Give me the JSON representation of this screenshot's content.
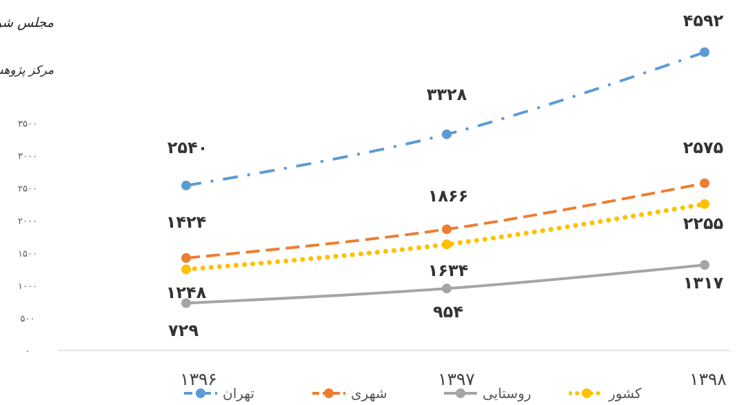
{
  "logo": {
    "line1": "مجلس شورای اسلامی",
    "line2": "مرکز پژوهش‌ها"
  },
  "chart_data": {
    "type": "line",
    "title": "",
    "xlabel": "",
    "ylabel": "",
    "categories": [
      "۱۳۹۶",
      "۱۳۹۷",
      "۱۳۹۸"
    ],
    "y_ticks": [
      "۰",
      "۵۰۰",
      "۱۰۰۰",
      "۱۵۰۰",
      "۲۰۰۰",
      "۲۵۰۰",
      "۳۰۰۰",
      "۳۵۰۰"
    ],
    "ylim": [
      0,
      4800
    ],
    "grid": false,
    "legend_position": "bottom",
    "series": [
      {
        "name": "تهران",
        "values": [
          2540,
          3328,
          4592
        ],
        "labels": [
          "۲۵۴۰",
          "۳۳۲۸",
          "۴۵۹۲"
        ],
        "color": "#5B9BD5",
        "style": "dash-dot"
      },
      {
        "name": "شهری",
        "values": [
          1424,
          1866,
          2575
        ],
        "labels": [
          "۱۴۲۴",
          "۱۸۶۶",
          "۲۵۷۵"
        ],
        "color": "#ED7D31",
        "style": "dash"
      },
      {
        "name": "روستایی",
        "values": [
          729,
          954,
          1317
        ],
        "labels": [
          "۷۲۹",
          "۹۵۴",
          "۱۳۱۷"
        ],
        "color": "#A5A5A5",
        "style": "solid"
      },
      {
        "name": "کشور",
        "values": [
          1248,
          1634,
          2255
        ],
        "labels": [
          "۱۲۴۸",
          "۱۶۳۴",
          "۲۲۵۵"
        ],
        "color": "#FFC000",
        "style": "dot"
      }
    ]
  }
}
